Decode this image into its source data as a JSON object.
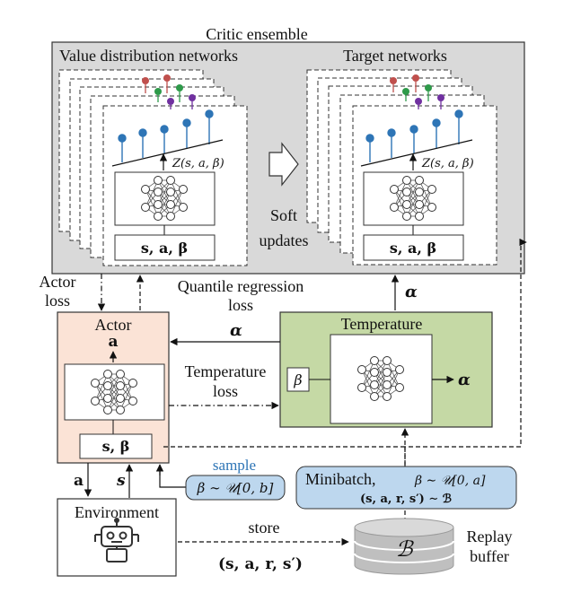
{
  "critic": {
    "title": "Critic ensemble",
    "value_label": "Value distribution networks",
    "target_label": "Target networks",
    "z_label": "Z(s, a, β)",
    "input_label": "s, a, β",
    "soft_updates_line1": "Soft",
    "soft_updates_line2": "updates",
    "fill_color": "#d9d9d9"
  },
  "actor": {
    "title": "Actor",
    "output": "a",
    "input_label": "s, β",
    "fill_color": "#fbe3d6"
  },
  "temperature": {
    "title": "Temperature",
    "beta": "β",
    "output": "α",
    "fill_color": "#c5d9a5"
  },
  "edges": {
    "actor_loss_line1": "Actor",
    "actor_loss_line2": "loss",
    "quantile_line1": "Quantile regression",
    "quantile_line2": "loss",
    "alpha_up": "α",
    "alpha_left": "α",
    "temp_loss_line1": "Temperature",
    "temp_loss_line2": "loss",
    "a_down": "a",
    "s_up": "s",
    "store": "store",
    "store_tuple": "(s, a, r, s′)"
  },
  "sample": {
    "label": "sample",
    "formula": "β ∼ 𝒰[0, b]",
    "label_color": "#2e75b6",
    "fill_color": "#bdd7ee"
  },
  "minibatch": {
    "label": "Minibatch,",
    "formula": "β ∼ 𝒰[0, a]",
    "tuple": "(s, a, r, s′) ∼ ℬ",
    "fill_color": "#bdd7ee"
  },
  "environment": {
    "label": "Environment",
    "robot_icon": "robot-icon"
  },
  "replay": {
    "symbol": "ℬ",
    "line1": "Replay",
    "line2": "buffer",
    "icon": "database-icon"
  },
  "palette": {
    "red": "#c0504d",
    "green": "#2e9a4a",
    "purple": "#7030a0",
    "blue": "#2e75b6"
  }
}
